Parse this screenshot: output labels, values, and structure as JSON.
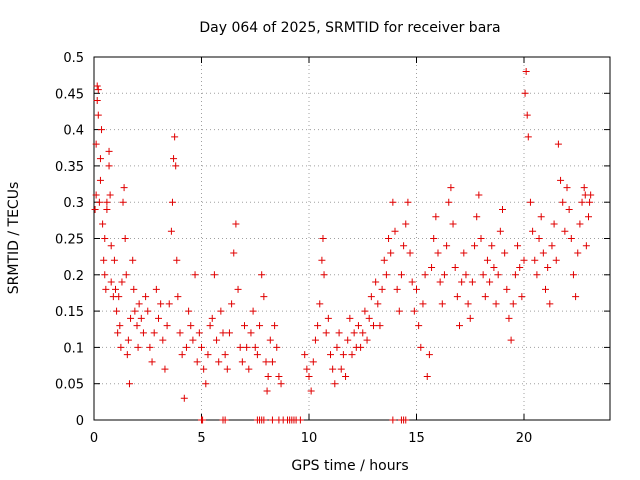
{
  "chart_data": {
    "type": "scatter",
    "title": "Day 064 of 2025, SRMTID for receiver bara",
    "xlabel": "GPS time / hours",
    "ylabel": "SRMTID / TECUs",
    "xlim": [
      0,
      24
    ],
    "ylim": [
      0,
      0.5
    ],
    "xticks": [
      0,
      5,
      10,
      15,
      20
    ],
    "xtick_labels": [
      "0",
      "5",
      "10",
      "15",
      "20"
    ],
    "yticks": [
      0,
      0.05,
      0.1,
      0.15,
      0.2,
      0.25,
      0.3,
      0.35,
      0.4,
      0.45,
      0.5
    ],
    "ytick_labels": [
      "0",
      "0.05",
      "0.1",
      "0.15",
      "0.2",
      "0.25",
      "0.3",
      "0.35",
      "0.4",
      "0.45",
      "0.5"
    ],
    "grid": true,
    "marker": "+",
    "color": "#e00000",
    "series": [
      {
        "name": "SRMTID",
        "points": [
          [
            0.05,
            0.29
          ],
          [
            0.1,
            0.31
          ],
          [
            0.1,
            0.38
          ],
          [
            0.15,
            0.44
          ],
          [
            0.15,
            0.46
          ],
          [
            0.2,
            0.455
          ],
          [
            0.2,
            0.42
          ],
          [
            0.25,
            0.3
          ],
          [
            0.3,
            0.36
          ],
          [
            0.3,
            0.33
          ],
          [
            0.35,
            0.4
          ],
          [
            0.4,
            0.27
          ],
          [
            0.45,
            0.22
          ],
          [
            0.5,
            0.25
          ],
          [
            0.5,
            0.2
          ],
          [
            0.55,
            0.18
          ],
          [
            0.6,
            0.29
          ],
          [
            0.6,
            0.3
          ],
          [
            0.7,
            0.35
          ],
          [
            0.7,
            0.37
          ],
          [
            0.75,
            0.31
          ],
          [
            0.8,
            0.24
          ],
          [
            0.8,
            0.19
          ],
          [
            0.9,
            0.17
          ],
          [
            0.95,
            0.22
          ],
          [
            1.0,
            0.18
          ],
          [
            1.05,
            0.15
          ],
          [
            1.1,
            0.12
          ],
          [
            1.15,
            0.17
          ],
          [
            1.2,
            0.13
          ],
          [
            1.25,
            0.1
          ],
          [
            1.3,
            0.19
          ],
          [
            1.35,
            0.3
          ],
          [
            1.4,
            0.32
          ],
          [
            1.45,
            0.25
          ],
          [
            1.5,
            0.2
          ],
          [
            1.55,
            0.09
          ],
          [
            1.6,
            0.11
          ],
          [
            1.65,
            0.05
          ],
          [
            1.7,
            0.14
          ],
          [
            1.8,
            0.22
          ],
          [
            1.85,
            0.18
          ],
          [
            1.9,
            0.15
          ],
          [
            2.0,
            0.13
          ],
          [
            2.05,
            0.1
          ],
          [
            2.1,
            0.16
          ],
          [
            2.2,
            0.14
          ],
          [
            2.3,
            0.12
          ],
          [
            2.4,
            0.17
          ],
          [
            2.5,
            0.15
          ],
          [
            2.6,
            0.1
          ],
          [
            2.7,
            0.08
          ],
          [
            2.8,
            0.12
          ],
          [
            2.9,
            0.18
          ],
          [
            3.0,
            0.14
          ],
          [
            3.1,
            0.16
          ],
          [
            3.2,
            0.11
          ],
          [
            3.3,
            0.07
          ],
          [
            3.4,
            0.13
          ],
          [
            3.5,
            0.16
          ],
          [
            3.6,
            0.26
          ],
          [
            3.65,
            0.3
          ],
          [
            3.7,
            0.36
          ],
          [
            3.75,
            0.39
          ],
          [
            3.8,
            0.35
          ],
          [
            3.85,
            0.22
          ],
          [
            3.9,
            0.17
          ],
          [
            4.0,
            0.12
          ],
          [
            4.1,
            0.09
          ],
          [
            4.2,
            0.03
          ],
          [
            4.3,
            0.1
          ],
          [
            4.4,
            0.15
          ],
          [
            4.5,
            0.13
          ],
          [
            4.6,
            0.11
          ],
          [
            4.7,
            0.2
          ],
          [
            4.8,
            0.08
          ],
          [
            4.9,
            0.12
          ],
          [
            5.0,
            0.1
          ],
          [
            5.1,
            0.07
          ],
          [
            5.2,
            0.05
          ],
          [
            5.3,
            0.09
          ],
          [
            5.4,
            0.13
          ],
          [
            5.5,
            0.14
          ],
          [
            5.6,
            0.2
          ],
          [
            5.7,
            0.11
          ],
          [
            5.8,
            0.08
          ],
          [
            5.9,
            0.15
          ],
          [
            6.0,
            0.12
          ],
          [
            6.1,
            0.09
          ],
          [
            6.2,
            0.07
          ],
          [
            6.3,
            0.12
          ],
          [
            6.4,
            0.16
          ],
          [
            6.5,
            0.23
          ],
          [
            6.6,
            0.27
          ],
          [
            6.7,
            0.18
          ],
          [
            6.8,
            0.1
          ],
          [
            6.9,
            0.08
          ],
          [
            7.0,
            0.13
          ],
          [
            7.1,
            0.1
          ],
          [
            7.2,
            0.07
          ],
          [
            7.3,
            0.12
          ],
          [
            7.4,
            0.15
          ],
          [
            7.5,
            0.1
          ],
          [
            7.6,
            0.09
          ],
          [
            7.7,
            0.13
          ],
          [
            7.8,
            0.2
          ],
          [
            7.9,
            0.17
          ],
          [
            8.0,
            0.08
          ],
          [
            8.05,
            0.04
          ],
          [
            8.1,
            0.06
          ],
          [
            8.2,
            0.11
          ],
          [
            8.3,
            0.08
          ],
          [
            8.4,
            0.13
          ],
          [
            8.5,
            0.1
          ],
          [
            8.6,
            0.06
          ],
          [
            8.7,
            0.05
          ],
          [
            9.8,
            0.09
          ],
          [
            9.9,
            0.07
          ],
          [
            10.0,
            0.06
          ],
          [
            10.1,
            0.04
          ],
          [
            10.2,
            0.08
          ],
          [
            10.3,
            0.11
          ],
          [
            10.4,
            0.13
          ],
          [
            10.5,
            0.16
          ],
          [
            10.6,
            0.22
          ],
          [
            10.65,
            0.25
          ],
          [
            10.7,
            0.2
          ],
          [
            10.8,
            0.12
          ],
          [
            10.9,
            0.14
          ],
          [
            11.0,
            0.09
          ],
          [
            11.1,
            0.07
          ],
          [
            11.2,
            0.05
          ],
          [
            11.3,
            0.1
          ],
          [
            11.4,
            0.12
          ],
          [
            11.5,
            0.07
          ],
          [
            11.6,
            0.09
          ],
          [
            11.7,
            0.06
          ],
          [
            11.8,
            0.11
          ],
          [
            11.9,
            0.14
          ],
          [
            12.0,
            0.09
          ],
          [
            12.1,
            0.12
          ],
          [
            12.2,
            0.1
          ],
          [
            12.3,
            0.13
          ],
          [
            12.4,
            0.1
          ],
          [
            12.5,
            0.12
          ],
          [
            12.6,
            0.15
          ],
          [
            12.7,
            0.11
          ],
          [
            12.8,
            0.14
          ],
          [
            12.9,
            0.17
          ],
          [
            13.0,
            0.13
          ],
          [
            13.1,
            0.19
          ],
          [
            13.2,
            0.16
          ],
          [
            13.3,
            0.13
          ],
          [
            13.4,
            0.18
          ],
          [
            13.5,
            0.22
          ],
          [
            13.6,
            0.2
          ],
          [
            13.7,
            0.25
          ],
          [
            13.8,
            0.23
          ],
          [
            13.9,
            0.3
          ],
          [
            14.0,
            0.26
          ],
          [
            14.1,
            0.18
          ],
          [
            14.2,
            0.15
          ],
          [
            14.3,
            0.2
          ],
          [
            14.4,
            0.24
          ],
          [
            14.5,
            0.27
          ],
          [
            14.6,
            0.3
          ],
          [
            14.7,
            0.23
          ],
          [
            14.8,
            0.19
          ],
          [
            14.9,
            0.15
          ],
          [
            15.0,
            0.18
          ],
          [
            15.1,
            0.13
          ],
          [
            15.2,
            0.1
          ],
          [
            15.3,
            0.16
          ],
          [
            15.4,
            0.2
          ],
          [
            15.5,
            0.06
          ],
          [
            15.6,
            0.09
          ],
          [
            15.7,
            0.21
          ],
          [
            15.8,
            0.25
          ],
          [
            15.9,
            0.28
          ],
          [
            16.0,
            0.23
          ],
          [
            16.1,
            0.19
          ],
          [
            16.2,
            0.16
          ],
          [
            16.3,
            0.2
          ],
          [
            16.4,
            0.24
          ],
          [
            16.5,
            0.3
          ],
          [
            16.6,
            0.32
          ],
          [
            16.7,
            0.27
          ],
          [
            16.8,
            0.21
          ],
          [
            16.9,
            0.17
          ],
          [
            17.0,
            0.13
          ],
          [
            17.1,
            0.19
          ],
          [
            17.2,
            0.23
          ],
          [
            17.3,
            0.2
          ],
          [
            17.4,
            0.16
          ],
          [
            17.5,
            0.14
          ],
          [
            17.6,
            0.19
          ],
          [
            17.7,
            0.24
          ],
          [
            17.8,
            0.28
          ],
          [
            17.9,
            0.31
          ],
          [
            18.0,
            0.25
          ],
          [
            18.1,
            0.2
          ],
          [
            18.2,
            0.17
          ],
          [
            18.3,
            0.22
          ],
          [
            18.4,
            0.19
          ],
          [
            18.5,
            0.24
          ],
          [
            18.6,
            0.21
          ],
          [
            18.7,
            0.16
          ],
          [
            18.8,
            0.2
          ],
          [
            18.9,
            0.26
          ],
          [
            19.0,
            0.29
          ],
          [
            19.1,
            0.23
          ],
          [
            19.2,
            0.18
          ],
          [
            19.3,
            0.14
          ],
          [
            19.4,
            0.11
          ],
          [
            19.5,
            0.16
          ],
          [
            19.6,
            0.2
          ],
          [
            19.7,
            0.24
          ],
          [
            19.8,
            0.21
          ],
          [
            19.9,
            0.17
          ],
          [
            20.0,
            0.22
          ],
          [
            20.05,
            0.45
          ],
          [
            20.1,
            0.48
          ],
          [
            20.15,
            0.42
          ],
          [
            20.2,
            0.39
          ],
          [
            20.3,
            0.3
          ],
          [
            20.4,
            0.26
          ],
          [
            20.5,
            0.22
          ],
          [
            20.6,
            0.2
          ],
          [
            20.7,
            0.25
          ],
          [
            20.8,
            0.28
          ],
          [
            20.9,
            0.23
          ],
          [
            21.0,
            0.18
          ],
          [
            21.1,
            0.21
          ],
          [
            21.2,
            0.16
          ],
          [
            21.3,
            0.24
          ],
          [
            21.4,
            0.27
          ],
          [
            21.5,
            0.22
          ],
          [
            21.6,
            0.38
          ],
          [
            21.7,
            0.33
          ],
          [
            21.8,
            0.3
          ],
          [
            21.9,
            0.26
          ],
          [
            22.0,
            0.32
          ],
          [
            22.1,
            0.29
          ],
          [
            22.2,
            0.25
          ],
          [
            22.3,
            0.2
          ],
          [
            22.4,
            0.17
          ],
          [
            22.5,
            0.23
          ],
          [
            22.6,
            0.27
          ],
          [
            22.7,
            0.3
          ],
          [
            22.8,
            0.32
          ],
          [
            22.85,
            0.31
          ],
          [
            22.9,
            0.24
          ],
          [
            23.0,
            0.28
          ],
          [
            23.05,
            0.3
          ],
          [
            23.1,
            0.31
          ],
          [
            5.0,
            0.0
          ],
          [
            5.05,
            0.0
          ],
          [
            6.0,
            0.0
          ],
          [
            6.1,
            0.0
          ],
          [
            7.6,
            0.0
          ],
          [
            7.7,
            0.0
          ],
          [
            7.8,
            0.0
          ],
          [
            7.9,
            0.0
          ],
          [
            8.3,
            0.0
          ],
          [
            8.6,
            0.0
          ],
          [
            8.8,
            0.0
          ],
          [
            9.0,
            0.0
          ],
          [
            9.1,
            0.0
          ],
          [
            9.2,
            0.0
          ],
          [
            9.3,
            0.0
          ],
          [
            9.4,
            0.0
          ],
          [
            9.6,
            0.0
          ],
          [
            13.9,
            0.0
          ],
          [
            14.3,
            0.0
          ],
          [
            14.4,
            0.0
          ],
          [
            14.5,
            0.0
          ]
        ]
      }
    ]
  }
}
